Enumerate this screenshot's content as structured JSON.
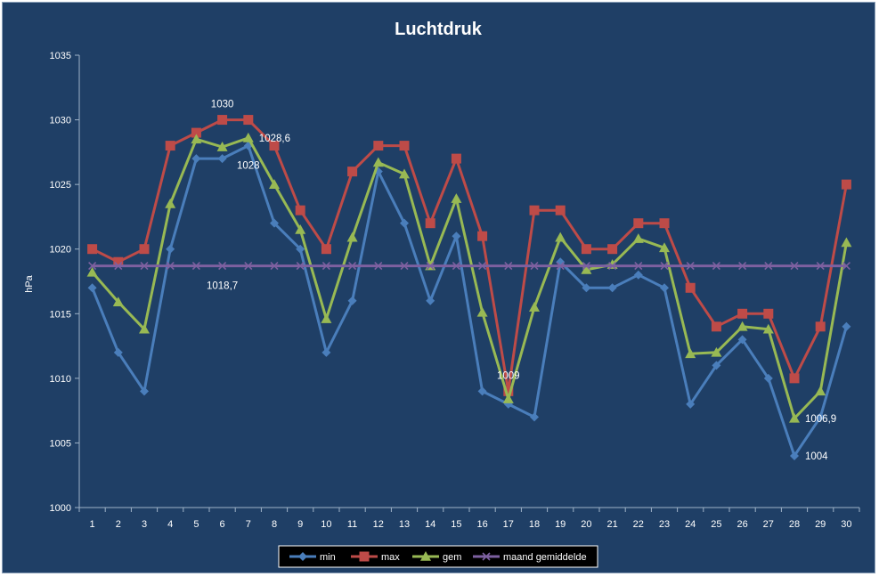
{
  "chart_data": {
    "type": "line",
    "title": "Luchtdruk",
    "xlabel": "",
    "ylabel": "hPa",
    "ylim": [
      1000,
      1035
    ],
    "yticks": [
      1000,
      1005,
      1010,
      1015,
      1020,
      1025,
      1030,
      1035
    ],
    "x": [
      1,
      2,
      3,
      4,
      5,
      6,
      7,
      8,
      9,
      10,
      11,
      12,
      13,
      14,
      15,
      16,
      17,
      18,
      19,
      20,
      21,
      22,
      23,
      24,
      25,
      26,
      27,
      28,
      29,
      30
    ],
    "grid": false,
    "legend_position": "bottom",
    "series": [
      {
        "name": "min",
        "color": "#4a7ebb",
        "marker": "diamond",
        "values": [
          1017,
          1012,
          1009,
          1020,
          1027,
          1027,
          1028,
          1022,
          1020,
          1012,
          1016,
          1026,
          1022,
          1016,
          1021,
          1009,
          1008,
          1007,
          1019,
          1017,
          1017,
          1018,
          1017,
          1008,
          1011,
          1013,
          1010,
          1004,
          1007,
          1014
        ]
      },
      {
        "name": "max",
        "color": "#be4b48",
        "marker": "square",
        "values": [
          1020,
          1019,
          1020,
          1028,
          1029,
          1030,
          1030,
          1028,
          1023,
          1020,
          1026,
          1028,
          1028,
          1022,
          1027,
          1021,
          1009,
          1023,
          1023,
          1020,
          1020,
          1022,
          1022,
          1017,
          1014,
          1015,
          1015,
          1010,
          1014,
          1025
        ]
      },
      {
        "name": "gem",
        "color": "#98b954",
        "marker": "triangle",
        "values": [
          1018.2,
          1015.9,
          1013.8,
          1023.5,
          1028.5,
          1027.9,
          1028.6,
          1025.0,
          1021.5,
          1014.6,
          1020.9,
          1026.7,
          1025.8,
          1018.7,
          1023.9,
          1015.1,
          1008.4,
          1015.5,
          1020.9,
          1018.4,
          1018.8,
          1020.8,
          1020.1,
          1011.9,
          1012.0,
          1014.0,
          1013.8,
          1006.9,
          1009.0,
          1020.5
        ]
      },
      {
        "name": "maand gemiddelde",
        "color": "#7d60a0",
        "marker": "x",
        "values": [
          1018.7,
          1018.7,
          1018.7,
          1018.7,
          1018.7,
          1018.7,
          1018.7,
          1018.7,
          1018.7,
          1018.7,
          1018.7,
          1018.7,
          1018.7,
          1018.7,
          1018.7,
          1018.7,
          1018.7,
          1018.7,
          1018.7,
          1018.7,
          1018.7,
          1018.7,
          1018.7,
          1018.7,
          1018.7,
          1018.7,
          1018.7,
          1018.7,
          1018.7,
          1018.7
        ]
      }
    ],
    "annotations": [
      {
        "text": "1030",
        "x": 6,
        "y": 1030,
        "anchor": "above"
      },
      {
        "text": "1028,6",
        "x": 7,
        "y": 1028.6,
        "anchor": "right"
      },
      {
        "text": "1028",
        "x": 7,
        "y": 1028,
        "anchor": "below"
      },
      {
        "text": "1018,7",
        "x": 6,
        "y": 1018.7,
        "anchor": "below"
      },
      {
        "text": "1009",
        "x": 17,
        "y": 1009,
        "anchor": "above"
      },
      {
        "text": "1006,9",
        "x": 28,
        "y": 1006.9,
        "anchor": "right"
      },
      {
        "text": "1004",
        "x": 28,
        "y": 1004,
        "anchor": "right"
      }
    ]
  }
}
